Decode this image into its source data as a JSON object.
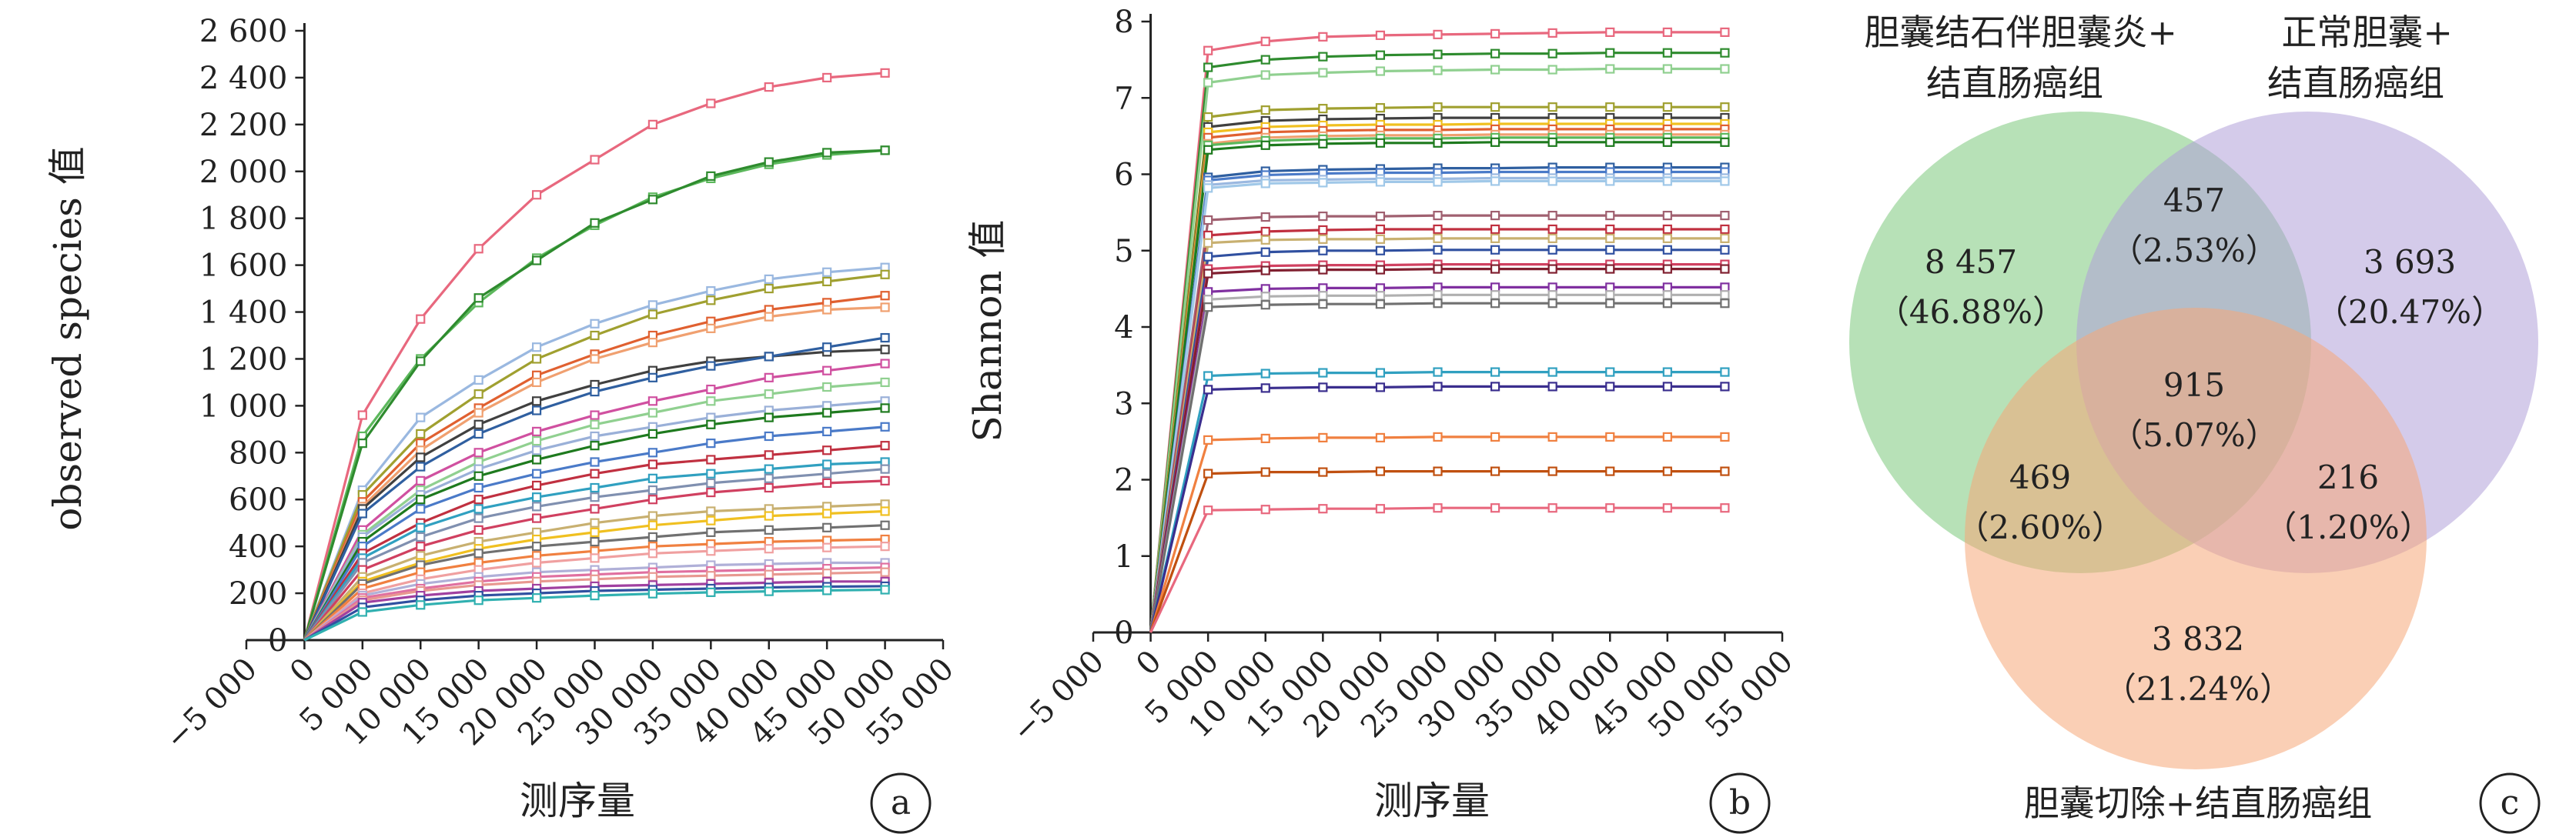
{
  "chart_data": [
    {
      "type": "line",
      "panel": "a",
      "xlabel": "测序量",
      "ylabel": "observed species 值",
      "xlim": [
        -5000,
        55000
      ],
      "ylim": [
        0,
        2600
      ],
      "xticks": [
        -5000,
        0,
        5000,
        10000,
        15000,
        20000,
        25000,
        30000,
        35000,
        40000,
        45000,
        50000,
        55000
      ],
      "xtick_labels": [
        "−5 000",
        "0",
        "5 000",
        "10 000",
        "15 000",
        "20 000",
        "25 000",
        "30 000",
        "35 000",
        "40 000",
        "45 000",
        "50 000",
        "55 000"
      ],
      "yticks": [
        0,
        200,
        400,
        600,
        800,
        1000,
        1200,
        1400,
        1600,
        1800,
        2000,
        2200,
        2400,
        2600
      ],
      "ytick_labels": [
        "0",
        "200",
        "400",
        "600",
        "800",
        "1 000",
        "1 200",
        "1 400",
        "1 600",
        "1 800",
        "2 000",
        "2 200",
        "2 400",
        "2 600"
      ],
      "x": [
        0,
        5000,
        10000,
        15000,
        20000,
        25000,
        30000,
        35000,
        40000,
        45000,
        50000
      ],
      "series": [
        {
          "color": "#e8687e",
          "values": [
            0,
            960,
            1370,
            1670,
            1900,
            2050,
            2200,
            2290,
            2360,
            2400,
            2420
          ]
        },
        {
          "color": "#5cb85c",
          "values": [
            0,
            870,
            1200,
            1440,
            1630,
            1770,
            1890,
            1970,
            2030,
            2070,
            2090
          ]
        },
        {
          "color": "#2e8b2e",
          "values": [
            0,
            840,
            1190,
            1460,
            1620,
            1780,
            1880,
            1980,
            2040,
            2080,
            2090
          ]
        },
        {
          "color": "#9ab8e0",
          "values": [
            0,
            640,
            950,
            1110,
            1250,
            1350,
            1430,
            1490,
            1540,
            1570,
            1590
          ]
        },
        {
          "color": "#a0a030",
          "values": [
            0,
            620,
            880,
            1050,
            1200,
            1300,
            1390,
            1450,
            1500,
            1530,
            1560
          ]
        },
        {
          "color": "#e06030",
          "values": [
            0,
            590,
            840,
            990,
            1130,
            1220,
            1300,
            1360,
            1410,
            1440,
            1470
          ]
        },
        {
          "color": "#f0a070",
          "values": [
            0,
            570,
            810,
            970,
            1100,
            1200,
            1270,
            1330,
            1380,
            1410,
            1420
          ]
        },
        {
          "color": "#404040",
          "values": [
            0,
            560,
            780,
            920,
            1020,
            1090,
            1150,
            1190,
            1210,
            1230,
            1240
          ]
        },
        {
          "color": "#2f5fa0",
          "values": [
            0,
            540,
            740,
            880,
            980,
            1060,
            1120,
            1170,
            1210,
            1250,
            1290
          ]
        },
        {
          "color": "#d050a0",
          "values": [
            0,
            470,
            680,
            800,
            890,
            960,
            1020,
            1070,
            1120,
            1150,
            1180
          ]
        },
        {
          "color": "#90d090",
          "values": [
            0,
            450,
            640,
            760,
            850,
            920,
            970,
            1020,
            1050,
            1080,
            1100
          ]
        },
        {
          "color": "#9ab0d8",
          "values": [
            0,
            440,
            620,
            730,
            810,
            870,
            910,
            950,
            980,
            1000,
            1020
          ]
        },
        {
          "color": "#1e7a1e",
          "values": [
            0,
            420,
            600,
            700,
            770,
            830,
            880,
            920,
            950,
            970,
            990
          ]
        },
        {
          "color": "#4a7ac8",
          "values": [
            0,
            400,
            560,
            650,
            710,
            760,
            800,
            840,
            870,
            890,
            910
          ]
        },
        {
          "color": "#c03040",
          "values": [
            0,
            370,
            500,
            600,
            660,
            710,
            750,
            770,
            790,
            810,
            830
          ]
        },
        {
          "color": "#30a0c0",
          "values": [
            0,
            350,
            480,
            560,
            610,
            650,
            690,
            710,
            730,
            750,
            760
          ]
        },
        {
          "color": "#8090b0",
          "values": [
            0,
            330,
            440,
            520,
            570,
            610,
            640,
            670,
            690,
            710,
            730
          ]
        },
        {
          "color": "#d04060",
          "values": [
            0,
            300,
            400,
            470,
            520,
            560,
            600,
            630,
            650,
            670,
            680
          ]
        },
        {
          "color": "#c8b070",
          "values": [
            0,
            270,
            360,
            420,
            460,
            500,
            530,
            550,
            560,
            570,
            580
          ]
        },
        {
          "color": "#f0c020",
          "values": [
            0,
            250,
            330,
            390,
            430,
            460,
            490,
            510,
            530,
            540,
            550
          ]
        },
        {
          "color": "#707070",
          "values": [
            0,
            240,
            320,
            370,
            400,
            420,
            440,
            460,
            470,
            480,
            490
          ]
        },
        {
          "color": "#f08040",
          "values": [
            0,
            220,
            290,
            330,
            360,
            380,
            400,
            410,
            420,
            425,
            430
          ]
        },
        {
          "color": "#f0a0a0",
          "values": [
            0,
            200,
            260,
            300,
            330,
            350,
            370,
            380,
            390,
            395,
            400
          ]
        },
        {
          "color": "#b0b0d8",
          "values": [
            0,
            190,
            240,
            270,
            290,
            300,
            310,
            320,
            325,
            330,
            330
          ]
        },
        {
          "color": "#e070a0",
          "values": [
            0,
            180,
            220,
            250,
            270,
            280,
            290,
            295,
            300,
            305,
            310
          ]
        },
        {
          "color": "#e89890",
          "values": [
            0,
            170,
            210,
            235,
            250,
            260,
            270,
            275,
            280,
            285,
            290
          ]
        },
        {
          "color": "#a040a0",
          "values": [
            0,
            160,
            190,
            210,
            220,
            230,
            235,
            240,
            245,
            250,
            250
          ]
        },
        {
          "color": "#3050a0",
          "values": [
            0,
            140,
            170,
            190,
            200,
            210,
            215,
            220,
            225,
            228,
            230
          ]
        },
        {
          "color": "#30b0b0",
          "values": [
            0,
            120,
            150,
            170,
            180,
            190,
            198,
            204,
            208,
            212,
            215
          ]
        }
      ]
    },
    {
      "type": "line",
      "panel": "b",
      "xlabel": "测序量",
      "ylabel": "Shannon 值",
      "xlim": [
        -5000,
        55000
      ],
      "ylim": [
        0,
        8
      ],
      "xticks": [
        -5000,
        0,
        5000,
        10000,
        15000,
        20000,
        25000,
        30000,
        35000,
        40000,
        45000,
        50000,
        55000
      ],
      "xtick_labels": [
        "−5 000",
        "0",
        "5 000",
        "10 000",
        "15 000",
        "20 000",
        "25 000",
        "30 000",
        "35 000",
        "40 000",
        "45 000",
        "50 000",
        "55 000"
      ],
      "yticks": [
        0,
        1,
        2,
        3,
        4,
        5,
        6,
        7,
        8
      ],
      "ytick_labels": [
        "0",
        "1",
        "2",
        "3",
        "4",
        "5",
        "6",
        "7",
        "8"
      ],
      "x": [
        0,
        5000,
        10000,
        15000,
        20000,
        25000,
        30000,
        35000,
        40000,
        45000,
        50000
      ],
      "series": [
        {
          "color": "#e8687e",
          "values": [
            0,
            7.62,
            7.74,
            7.8,
            7.82,
            7.83,
            7.84,
            7.85,
            7.86,
            7.86,
            7.86
          ]
        },
        {
          "color": "#2e8b2e",
          "values": [
            0,
            7.4,
            7.5,
            7.54,
            7.56,
            7.57,
            7.58,
            7.58,
            7.59,
            7.59,
            7.59
          ]
        },
        {
          "color": "#90d090",
          "values": [
            0,
            7.2,
            7.3,
            7.33,
            7.35,
            7.36,
            7.37,
            7.37,
            7.38,
            7.38,
            7.38
          ]
        },
        {
          "color": "#a0a030",
          "values": [
            0,
            6.75,
            6.84,
            6.86,
            6.87,
            6.88,
            6.88,
            6.88,
            6.88,
            6.88,
            6.88
          ]
        },
        {
          "color": "#404040",
          "values": [
            0,
            6.62,
            6.7,
            6.72,
            6.73,
            6.74,
            6.74,
            6.74,
            6.74,
            6.74,
            6.74
          ]
        },
        {
          "color": "#f0c020",
          "values": [
            0,
            6.55,
            6.62,
            6.64,
            6.65,
            6.65,
            6.66,
            6.66,
            6.66,
            6.66,
            6.66
          ]
        },
        {
          "color": "#e06030",
          "values": [
            0,
            6.48,
            6.55,
            6.57,
            6.58,
            6.58,
            6.59,
            6.59,
            6.59,
            6.59,
            6.59
          ]
        },
        {
          "color": "#f0a070",
          "values": [
            0,
            6.4,
            6.48,
            6.5,
            6.51,
            6.51,
            6.52,
            6.52,
            6.52,
            6.52,
            6.52
          ]
        },
        {
          "color": "#5cb85c",
          "values": [
            0,
            6.38,
            6.44,
            6.46,
            6.47,
            6.47,
            6.48,
            6.48,
            6.48,
            6.48,
            6.48
          ]
        },
        {
          "color": "#1e7a1e",
          "values": [
            0,
            6.32,
            6.38,
            6.4,
            6.41,
            6.41,
            6.42,
            6.42,
            6.42,
            6.42,
            6.42
          ]
        },
        {
          "color": "#2f5fa0",
          "values": [
            0,
            5.96,
            6.04,
            6.06,
            6.07,
            6.08,
            6.08,
            6.09,
            6.09,
            6.09,
            6.09
          ]
        },
        {
          "color": "#4a7ac8",
          "values": [
            0,
            5.92,
            5.99,
            6.01,
            6.02,
            6.02,
            6.03,
            6.03,
            6.03,
            6.03,
            6.03
          ]
        },
        {
          "color": "#9ab8e0",
          "values": [
            0,
            5.86,
            5.92,
            5.93,
            5.94,
            5.94,
            5.95,
            5.95,
            5.95,
            5.95,
            5.95
          ]
        },
        {
          "color": "#a0c8e8",
          "values": [
            0,
            5.82,
            5.88,
            5.89,
            5.9,
            5.9,
            5.91,
            5.91,
            5.91,
            5.91,
            5.91
          ]
        },
        {
          "color": "#a06070",
          "values": [
            0,
            5.4,
            5.44,
            5.45,
            5.45,
            5.46,
            5.46,
            5.46,
            5.46,
            5.46,
            5.46
          ]
        },
        {
          "color": "#c03040",
          "values": [
            0,
            5.2,
            5.25,
            5.27,
            5.28,
            5.28,
            5.28,
            5.28,
            5.28,
            5.28,
            5.28
          ]
        },
        {
          "color": "#c8b070",
          "values": [
            0,
            5.1,
            5.14,
            5.15,
            5.15,
            5.16,
            5.16,
            5.16,
            5.16,
            5.16,
            5.16
          ]
        },
        {
          "color": "#3050a0",
          "values": [
            0,
            4.92,
            4.98,
            5.0,
            5.0,
            5.01,
            5.01,
            5.01,
            5.01,
            5.01,
            5.01
          ]
        },
        {
          "color": "#d04060",
          "values": [
            0,
            4.76,
            4.8,
            4.81,
            4.81,
            4.82,
            4.82,
            4.82,
            4.82,
            4.82,
            4.82
          ]
        },
        {
          "color": "#802030",
          "values": [
            0,
            4.7,
            4.74,
            4.75,
            4.75,
            4.76,
            4.76,
            4.76,
            4.76,
            4.76,
            4.76
          ]
        },
        {
          "color": "#8030a0",
          "values": [
            0,
            4.46,
            4.5,
            4.51,
            4.51,
            4.52,
            4.52,
            4.52,
            4.52,
            4.52,
            4.52
          ]
        },
        {
          "color": "#b0b0b0",
          "values": [
            0,
            4.36,
            4.4,
            4.41,
            4.41,
            4.42,
            4.42,
            4.42,
            4.42,
            4.42,
            4.42
          ]
        },
        {
          "color": "#707070",
          "values": [
            0,
            4.26,
            4.29,
            4.3,
            4.3,
            4.31,
            4.31,
            4.31,
            4.31,
            4.31,
            4.31
          ]
        },
        {
          "color": "#30a0c0",
          "values": [
            0,
            3.36,
            3.39,
            3.4,
            3.4,
            3.41,
            3.41,
            3.41,
            3.41,
            3.41,
            3.41
          ]
        },
        {
          "color": "#3a2e8e",
          "values": [
            0,
            3.18,
            3.2,
            3.21,
            3.21,
            3.22,
            3.22,
            3.22,
            3.22,
            3.22,
            3.22
          ]
        },
        {
          "color": "#f08040",
          "values": [
            0,
            2.52,
            2.54,
            2.55,
            2.55,
            2.56,
            2.56,
            2.56,
            2.56,
            2.56,
            2.56
          ]
        },
        {
          "color": "#c05010",
          "values": [
            0,
            2.08,
            2.1,
            2.1,
            2.11,
            2.11,
            2.11,
            2.11,
            2.11,
            2.11,
            2.11
          ]
        },
        {
          "color": "#e8687e",
          "values": [
            0,
            1.6,
            1.61,
            1.62,
            1.62,
            1.63,
            1.63,
            1.63,
            1.63,
            1.63,
            1.63
          ]
        }
      ]
    }
  ],
  "panels": {
    "a": "a",
    "b": "b",
    "c": "c"
  },
  "venn": {
    "sets": [
      {
        "name_lines": [
          "胆囊结石伴胆囊炎+",
          "结直肠癌组"
        ],
        "color": "#7cc87c"
      },
      {
        "name_lines": [
          "正常胆囊+",
          "结直肠癌组"
        ],
        "color": "#b0a0d8"
      },
      {
        "name_lines": [
          "胆囊切除+结直肠癌组"
        ],
        "color": "#f5a878"
      }
    ],
    "regions": [
      {
        "count": "8 457",
        "pct": "（46.88%）"
      },
      {
        "count": "457",
        "pct": "（2.53%）"
      },
      {
        "count": "3 693",
        "pct": "（20.47%）"
      },
      {
        "count": "915",
        "pct": "（5.07%）"
      },
      {
        "count": "469",
        "pct": "（2.60%）"
      },
      {
        "count": "216",
        "pct": "（1.20%）"
      },
      {
        "count": "3 832",
        "pct": "（21.24%）"
      }
    ]
  }
}
